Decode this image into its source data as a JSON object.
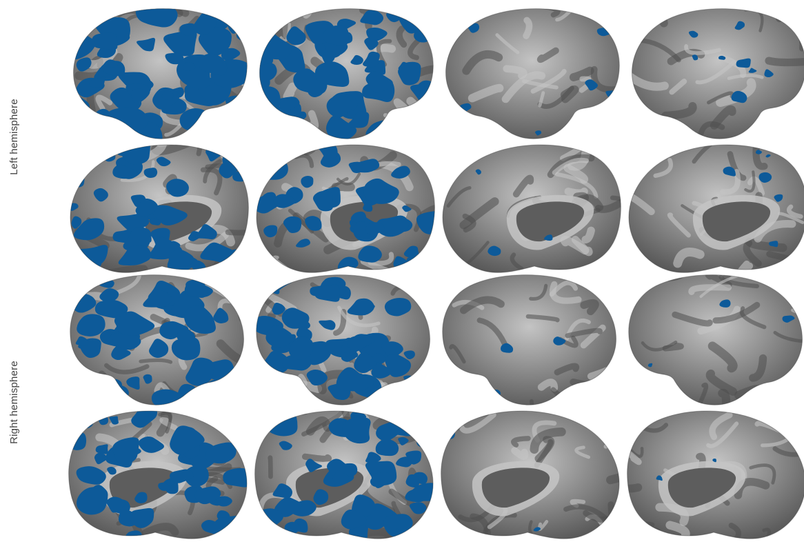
{
  "row_groups": [
    {
      "label": "Left hemisphere"
    },
    {
      "label": "Right hemisphere"
    }
  ],
  "rows": [
    {
      "hemisphere": "left",
      "view": "lateral"
    },
    {
      "hemisphere": "left",
      "view": "medial"
    },
    {
      "hemisphere": "right",
      "view": "lateral"
    },
    {
      "hemisphere": "right",
      "view": "medial"
    }
  ],
  "columns": 4,
  "overlay_coverage": [
    [
      0.62,
      0.55,
      0.08,
      0.1
    ],
    [
      0.45,
      0.42,
      0.03,
      0.06
    ],
    [
      0.52,
      0.5,
      0.02,
      0.04
    ],
    [
      0.5,
      0.45,
      0.01,
      0.02
    ]
  ],
  "colors": {
    "overlay": "#0d5a99",
    "cortex_dark": "#4f4f4f",
    "cortex_mid": "#8c8c8c",
    "cortex_light": "#c4c4c4",
    "medial_wall": "#5d5d5d",
    "background": "#ffffff"
  }
}
